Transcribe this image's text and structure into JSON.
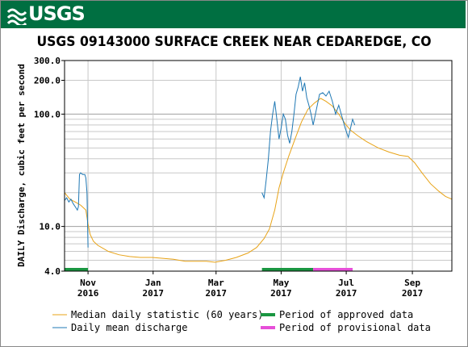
{
  "header": {
    "logo_text": "USGS"
  },
  "chart_data": {
    "type": "line",
    "title": "USGS 09143000 SURFACE CREEK NEAR CEDAREDGE, CO",
    "ylabel": "DAILY Discharge, cubic feet per second",
    "y_scale": "log",
    "ylim": [
      4.0,
      300.0
    ],
    "y_ticks": [
      {
        "value": 4.0,
        "label": "4.0"
      },
      {
        "value": 10.0,
        "label": "10.0"
      },
      {
        "value": 100.0,
        "label": "100.0"
      },
      {
        "value": 200.0,
        "label": "200.0"
      },
      {
        "value": 300.0,
        "label": "300.0"
      }
    ],
    "xlim": [
      "2016-10-10",
      "2017-10-08"
    ],
    "x_ticks": [
      {
        "date": "2016-11-01",
        "month": "Nov",
        "year": "2016"
      },
      {
        "date": "2017-01-01",
        "month": "Jan",
        "year": "2017"
      },
      {
        "date": "2017-03-01",
        "month": "Mar",
        "year": "2017"
      },
      {
        "date": "2017-05-01",
        "month": "May",
        "year": "2017"
      },
      {
        "date": "2017-07-01",
        "month": "Jul",
        "year": "2017"
      },
      {
        "date": "2017-09-01",
        "month": "Sep",
        "year": "2017"
      }
    ],
    "grid": true,
    "legend_position": "bottom",
    "series": [
      {
        "name": "Median daily statistic (60 years)",
        "color": "#e8a317",
        "points": [
          [
            "2016-10-10",
            20.0
          ],
          [
            "2016-10-15",
            17.5
          ],
          [
            "2016-10-20",
            16.5
          ],
          [
            "2016-10-25",
            15.5
          ],
          [
            "2016-10-30",
            14.0
          ],
          [
            "2016-11-01",
            10.5
          ],
          [
            "2016-11-03",
            8.5
          ],
          [
            "2016-11-06",
            7.4
          ],
          [
            "2016-11-10",
            6.8
          ],
          [
            "2016-11-20",
            6.0
          ],
          [
            "2016-11-30",
            5.6
          ],
          [
            "2016-12-10",
            5.4
          ],
          [
            "2016-12-20",
            5.3
          ],
          [
            "2016-12-31",
            5.3
          ],
          [
            "2017-01-10",
            5.2
          ],
          [
            "2017-01-20",
            5.1
          ],
          [
            "2017-01-31",
            4.9
          ],
          [
            "2017-02-10",
            4.9
          ],
          [
            "2017-02-20",
            4.9
          ],
          [
            "2017-02-28",
            4.8
          ],
          [
            "2017-03-10",
            5.0
          ],
          [
            "2017-03-20",
            5.3
          ],
          [
            "2017-03-31",
            5.8
          ],
          [
            "2017-04-08",
            6.5
          ],
          [
            "2017-04-15",
            7.8
          ],
          [
            "2017-04-20",
            9.5
          ],
          [
            "2017-04-25",
            14.0
          ],
          [
            "2017-04-29",
            22.0
          ],
          [
            "2017-05-03",
            30.0
          ],
          [
            "2017-05-08",
            42.0
          ],
          [
            "2017-05-14",
            60.0
          ],
          [
            "2017-05-20",
            85.0
          ],
          [
            "2017-05-26",
            110.0
          ],
          [
            "2017-06-01",
            125.0
          ],
          [
            "2017-06-07",
            138.0
          ],
          [
            "2017-06-12",
            130.0
          ],
          [
            "2017-06-18",
            118.0
          ],
          [
            "2017-06-24",
            100.0
          ],
          [
            "2017-06-30",
            82.0
          ],
          [
            "2017-07-05",
            72.0
          ],
          [
            "2017-07-12",
            64.0
          ],
          [
            "2017-07-20",
            57.0
          ],
          [
            "2017-07-31",
            50.0
          ],
          [
            "2017-08-10",
            46.0
          ],
          [
            "2017-08-20",
            43.0
          ],
          [
            "2017-08-28",
            42.0
          ],
          [
            "2017-09-03",
            37.0
          ],
          [
            "2017-09-10",
            30.0
          ],
          [
            "2017-09-18",
            24.0
          ],
          [
            "2017-09-26",
            20.5
          ],
          [
            "2017-10-02",
            18.5
          ],
          [
            "2017-10-08",
            17.5
          ]
        ]
      },
      {
        "name": "Daily mean discharge",
        "color": "#1f78b4",
        "segments": [
          [
            [
              "2016-10-10",
              17.0
            ],
            [
              "2016-10-12",
              18.0
            ],
            [
              "2016-10-14",
              16.5
            ],
            [
              "2016-10-16",
              17.5
            ],
            [
              "2016-10-18",
              16.0
            ],
            [
              "2016-10-20",
              15.0
            ],
            [
              "2016-10-22",
              14.0
            ],
            [
              "2016-10-23",
              15.0
            ],
            [
              "2016-10-24",
              29.0
            ],
            [
              "2016-10-25",
              30.0
            ],
            [
              "2016-10-27",
              29.0
            ],
            [
              "2016-10-29",
              29.0
            ],
            [
              "2016-10-30",
              27.0
            ],
            [
              "2016-10-31",
              20.0
            ],
            [
              "2016-11-01",
              6.5
            ]
          ],
          [
            [
              "2017-04-13",
              20.0
            ],
            [
              "2017-04-15",
              18.0
            ],
            [
              "2017-04-17",
              26.0
            ],
            [
              "2017-04-19",
              40.0
            ],
            [
              "2017-04-21",
              70.0
            ],
            [
              "2017-04-23",
              100.0
            ],
            [
              "2017-04-25",
              130.0
            ],
            [
              "2017-04-27",
              90.0
            ],
            [
              "2017-04-29",
              60.0
            ],
            [
              "2017-05-01",
              75.0
            ],
            [
              "2017-05-03",
              100.0
            ],
            [
              "2017-05-05",
              90.0
            ],
            [
              "2017-05-07",
              65.0
            ],
            [
              "2017-05-09",
              55.0
            ],
            [
              "2017-05-11",
              70.0
            ],
            [
              "2017-05-13",
              100.0
            ],
            [
              "2017-05-15",
              150.0
            ],
            [
              "2017-05-17",
              175.0
            ],
            [
              "2017-05-19",
              215.0
            ],
            [
              "2017-05-21",
              160.0
            ],
            [
              "2017-05-23",
              190.0
            ],
            [
              "2017-05-25",
              140.0
            ],
            [
              "2017-05-27",
              120.0
            ],
            [
              "2017-05-29",
              100.0
            ],
            [
              "2017-05-31",
              80.0
            ],
            [
              "2017-06-03",
              110.0
            ],
            [
              "2017-06-06",
              150.0
            ],
            [
              "2017-06-09",
              155.0
            ],
            [
              "2017-06-12",
              145.0
            ],
            [
              "2017-06-15",
              160.0
            ],
            [
              "2017-06-18",
              130.0
            ],
            [
              "2017-06-21",
              100.0
            ],
            [
              "2017-06-24",
              120.0
            ],
            [
              "2017-06-27",
              95.0
            ],
            [
              "2017-06-30",
              75.0
            ],
            [
              "2017-07-03",
              62.0
            ],
            [
              "2017-07-05",
              75.0
            ],
            [
              "2017-07-07",
              90.0
            ],
            [
              "2017-07-09",
              80.0
            ]
          ]
        ]
      },
      {
        "name": "Period of approved data",
        "color": "#1a9641",
        "ranges": [
          [
            "2016-10-10",
            "2016-11-01"
          ],
          [
            "2017-04-13",
            "2017-05-31"
          ]
        ]
      },
      {
        "name": "Period of provisional data",
        "color": "#e64fd8",
        "ranges": [
          [
            "2017-05-31",
            "2017-07-07"
          ]
        ]
      }
    ]
  }
}
